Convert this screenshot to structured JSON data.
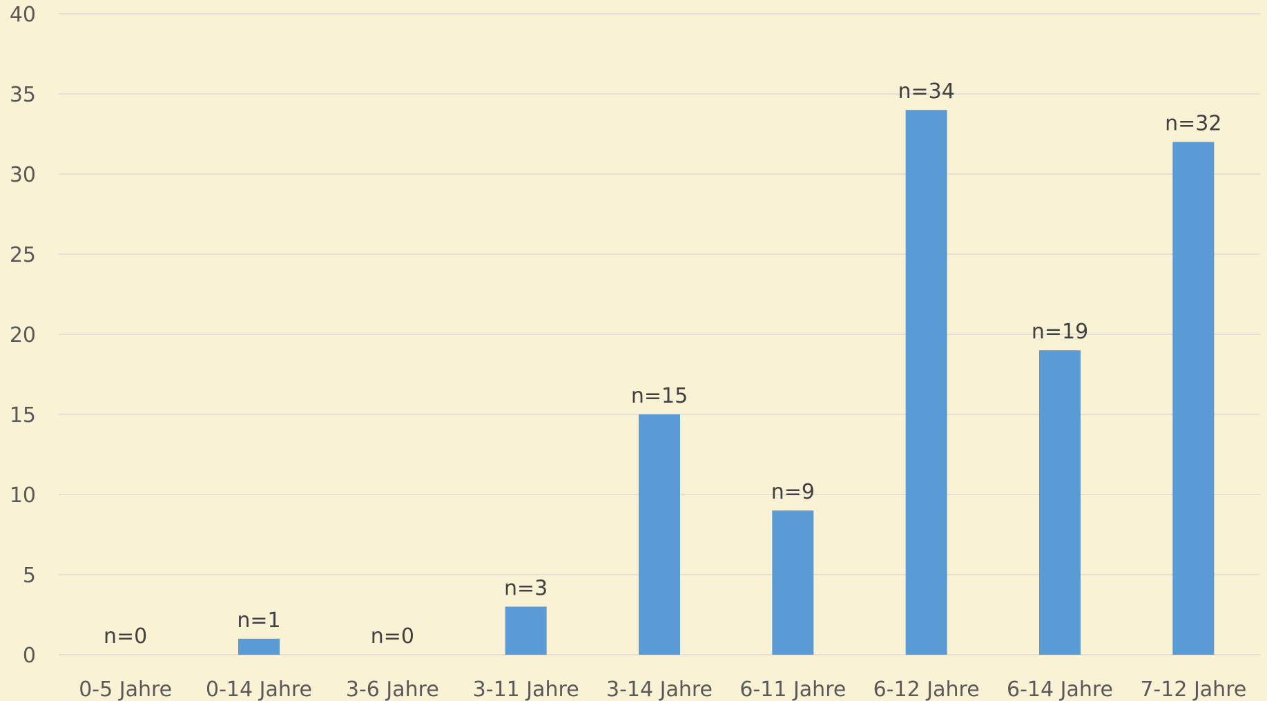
{
  "chart_data": {
    "type": "bar",
    "categories": [
      "0-5 Jahre",
      "0-14 Jahre",
      "3-6 Jahre",
      "3-11 Jahre",
      "3-14 Jahre",
      "6-11 Jahre",
      "6-12 Jahre",
      "6-14 Jahre",
      "7-12 Jahre"
    ],
    "values": [
      0,
      1,
      0,
      3,
      15,
      9,
      34,
      19,
      32
    ],
    "data_labels": [
      "n=0",
      "n=1",
      "n=0",
      "n=3",
      "n=15",
      "n=9",
      "n=34",
      "n=19",
      "n=32"
    ],
    "ylim": [
      0,
      40
    ],
    "yticks": [
      0,
      5,
      10,
      15,
      20,
      25,
      30,
      35,
      40
    ],
    "grid": true,
    "legend": "none",
    "colors": {
      "bar": "#5B9BD5",
      "background": "#FAF2D5",
      "grid": "#D9D9D9",
      "text": "#595959"
    }
  }
}
